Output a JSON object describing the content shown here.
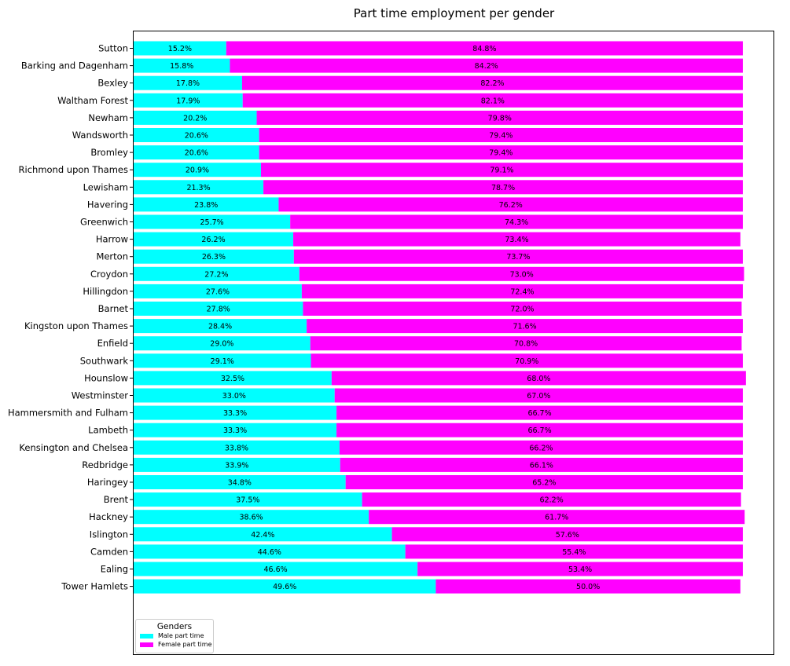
{
  "chart_data": {
    "type": "bar",
    "orientation": "horizontal",
    "stacked": true,
    "title": "Part time employment per gender",
    "xlabel": "",
    "ylabel": "",
    "categories": [
      "Sutton",
      "Barking and Dagenham",
      "Bexley",
      "Waltham Forest",
      "Newham",
      "Wandsworth",
      "Bromley",
      "Richmond upon Thames",
      "Lewisham",
      "Havering",
      "Greenwich",
      "Harrow",
      "Merton",
      "Croydon",
      "Hillingdon",
      "Barnet",
      "Kingston upon Thames",
      "Enfield",
      "Southwark",
      "Hounslow",
      "Westminster",
      "Hammersmith and Fulham",
      "Lambeth",
      "Kensington and Chelsea",
      "Redbridge",
      "Haringey",
      "Brent",
      "Hackney",
      "Islington",
      "Camden",
      "Ealing",
      "Tower Hamlets"
    ],
    "series": [
      {
        "name": "Male part time",
        "color": "#00ffff",
        "values": [
          15.2,
          15.8,
          17.8,
          17.9,
          20.2,
          20.6,
          20.6,
          20.9,
          21.3,
          23.8,
          25.7,
          26.2,
          26.3,
          27.2,
          27.6,
          27.8,
          28.4,
          29.0,
          29.1,
          32.5,
          33.0,
          33.3,
          33.3,
          33.8,
          33.9,
          34.8,
          37.5,
          38.6,
          42.4,
          44.6,
          46.6,
          49.6
        ],
        "labels": [
          "15.2%",
          "15.8%",
          "17.8%",
          "17.9%",
          "20.2%",
          "20.6%",
          "20.6%",
          "20.9%",
          "21.3%",
          "23.8%",
          "25.7%",
          "26.2%",
          "26.3%",
          "27.2%",
          "27.6%",
          "27.8%",
          "28.4%",
          "29.0%",
          "29.1%",
          "32.5%",
          "33.0%",
          "33.3%",
          "33.3%",
          "33.8%",
          "33.9%",
          "34.8%",
          "37.5%",
          "38.6%",
          "42.4%",
          "44.6%",
          "46.6%",
          "49.6%"
        ]
      },
      {
        "name": "Female part time",
        "color": "#ff00ff",
        "values": [
          84.8,
          84.2,
          82.2,
          82.1,
          79.8,
          79.4,
          79.4,
          79.1,
          78.7,
          76.2,
          74.3,
          73.4,
          73.7,
          73.0,
          72.4,
          72.0,
          71.6,
          70.8,
          70.9,
          68.0,
          67.0,
          66.7,
          66.7,
          66.2,
          66.1,
          65.2,
          62.2,
          61.7,
          57.6,
          55.4,
          53.4,
          50.0
        ],
        "labels": [
          "84.8%",
          "84.2%",
          "82.2%",
          "82.1%",
          "79.8%",
          "79.4%",
          "79.4%",
          "79.1%",
          "78.7%",
          "76.2%",
          "74.3%",
          "73.4%",
          "73.7%",
          "73.0%",
          "72.4%",
          "72.0%",
          "71.6%",
          "70.8%",
          "70.9%",
          "68.0%",
          "67.0%",
          "66.7%",
          "66.7%",
          "66.2%",
          "66.1%",
          "65.2%",
          "62.2%",
          "61.7%",
          "57.6%",
          "55.4%",
          "53.4%",
          "50.0%"
        ]
      }
    ],
    "xlim": [
      0,
      100
    ],
    "grid": false,
    "legend": {
      "title": "Genders",
      "placement": "lower-left",
      "entries": [
        "Male part time",
        "Female part time"
      ]
    }
  }
}
